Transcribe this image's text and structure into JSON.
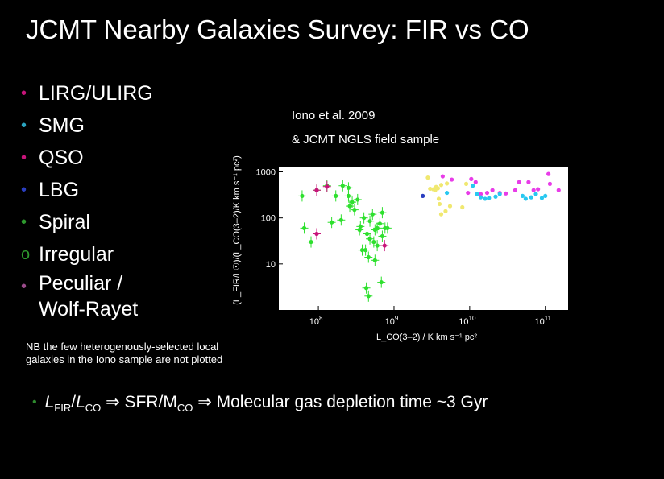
{
  "title": "JCMT Nearby Galaxies Survey: FIR vs CO",
  "legend": [
    {
      "label": "LIRG/ULIRG",
      "bullet": "•",
      "color": "#c8147a"
    },
    {
      "label": "SMG",
      "bullet": "•",
      "color": "#2aa4c0"
    },
    {
      "label": "QSO",
      "bullet": "•",
      "color": "#c8147a"
    },
    {
      "label": "LBG",
      "bullet": "•",
      "color": "#2a3ec0"
    },
    {
      "label": "Spiral",
      "bullet": "•",
      "color": "#2e9a2e"
    },
    {
      "label": "Irregular",
      "bullet": "o",
      "color": "#2e9a2e"
    },
    {
      "label": "Peculiar /",
      "label2": "Wolf-Rayet",
      "bullet": "•",
      "color": "#9a4a8a"
    }
  ],
  "reference": {
    "line1": "Iono et al. 2009",
    "line2": "& JCMT NGLS field sample"
  },
  "note": "NB the few heterogenously-selected local galaxies in the Iono sample are not plotted",
  "bottom": {
    "bullet": "•",
    "l": "L",
    "fir": "FIR",
    "slash": "/",
    "l2": "L",
    "co": "CO",
    "arrow1": " ⇒ SFR/M",
    "co2": "CO",
    "arrow2": " ⇒ Molecular gas depletion time ~3 Gyr"
  },
  "chart_data": {
    "type": "scatter",
    "xlabel": "L_CO(3–2) / K km s⁻¹ pc²",
    "ylabel": "(L_FIR/L☉)/(L_CO(3–2)/K km s⁻¹ pc²)",
    "xscale": "log",
    "yscale": "log",
    "xlim": [
      30000000,
      200000000000
    ],
    "ylim": [
      1,
      1300
    ],
    "x_ticks": [
      {
        "v": 100000000,
        "base": "10",
        "exp": "8"
      },
      {
        "v": 1000000000,
        "base": "10",
        "exp": "9"
      },
      {
        "v": 10000000000,
        "base": "10",
        "exp": "10"
      },
      {
        "v": 100000000000,
        "base": "10",
        "exp": "11"
      }
    ],
    "y_ticks": [
      {
        "v": 10,
        "label": "10"
      },
      {
        "v": 100,
        "label": "100"
      },
      {
        "v": 1000,
        "label": "1000"
      }
    ],
    "series": [
      {
        "group": "nearby",
        "color": "#2ee02e",
        "points": [
          [
            61000000,
            300
          ],
          [
            65000000,
            60
          ],
          [
            80000000,
            30
          ],
          [
            95000000,
            400
          ],
          [
            130000000,
            500
          ],
          [
            170000000,
            300
          ],
          [
            210000000,
            500
          ],
          [
            250000000,
            450
          ],
          [
            260000000,
            180
          ],
          [
            300000000,
            150
          ],
          [
            330000000,
            250
          ],
          [
            360000000,
            65
          ],
          [
            400000000,
            100
          ],
          [
            420000000,
            20
          ],
          [
            440000000,
            45
          ],
          [
            480000000,
            85
          ],
          [
            520000000,
            120
          ],
          [
            560000000,
            55
          ],
          [
            600000000,
            60
          ],
          [
            650000000,
            75
          ],
          [
            700000000,
            40
          ],
          [
            760000000,
            60
          ],
          [
            820000000,
            60
          ],
          [
            600000000,
            25
          ],
          [
            540000000,
            30
          ],
          [
            480000000,
            35
          ],
          [
            430000000,
            3
          ],
          [
            460000000,
            2
          ],
          [
            560000000,
            12
          ],
          [
            460000000,
            14
          ],
          [
            380000000,
            20
          ],
          [
            700000000,
            130
          ],
          [
            250000000,
            300
          ],
          [
            280000000,
            220
          ],
          [
            680000000,
            4
          ],
          [
            150000000,
            80
          ],
          [
            200000000,
            90
          ],
          [
            350000000,
            55
          ]
        ]
      },
      {
        "group": "peculiar",
        "color": "#c8147a",
        "points": [
          [
            95000000,
            400
          ],
          [
            95000000,
            45
          ],
          [
            130000000,
            480
          ],
          [
            750000000,
            25
          ]
        ]
      },
      {
        "group": "LIRG/ULIRG",
        "color": "#e83ce8",
        "points": [
          [
            4400000000,
            800
          ],
          [
            5800000000,
            680
          ],
          [
            9500000000,
            350
          ],
          [
            10500000000,
            700
          ],
          [
            12000000000,
            600
          ],
          [
            14000000000,
            330
          ],
          [
            17000000000,
            350
          ],
          [
            20000000000,
            400
          ],
          [
            25000000000,
            350
          ],
          [
            30000000000,
            340
          ],
          [
            40000000000,
            400
          ],
          [
            45000000000,
            600
          ],
          [
            60000000000,
            600
          ],
          [
            70000000000,
            400
          ],
          [
            80000000000,
            420
          ],
          [
            110000000000,
            900
          ],
          [
            115000000000,
            550
          ],
          [
            150000000000,
            400
          ]
        ]
      },
      {
        "group": "SMG",
        "color": "#28c8f0",
        "points": [
          [
            5000000000,
            350
          ],
          [
            11000000000,
            500
          ],
          [
            12500000000,
            330
          ],
          [
            14000000000,
            280
          ],
          [
            16000000000,
            260
          ],
          [
            18000000000,
            270
          ],
          [
            22000000000,
            290
          ],
          [
            25000000000,
            330
          ],
          [
            50000000000,
            300
          ],
          [
            55000000000,
            260
          ],
          [
            65000000000,
            280
          ],
          [
            75000000000,
            330
          ],
          [
            90000000000,
            270
          ],
          [
            100000000000,
            300
          ]
        ]
      },
      {
        "group": "QSO",
        "color": "#f0e870",
        "points": [
          [
            2800000000,
            750
          ],
          [
            3000000000,
            430
          ],
          [
            3300000000,
            420
          ],
          [
            3600000000,
            470
          ],
          [
            3800000000,
            440
          ],
          [
            4200000000,
            520
          ],
          [
            3500000000,
            400
          ],
          [
            3900000000,
            260
          ],
          [
            4000000000,
            200
          ],
          [
            5000000000,
            560
          ],
          [
            4200000000,
            120
          ],
          [
            4800000000,
            140
          ],
          [
            5500000000,
            180
          ],
          [
            8000000000,
            170
          ],
          [
            9000000000,
            550
          ]
        ]
      },
      {
        "group": "LBG",
        "color": "#2a3ec0",
        "points": [
          [
            2400000000,
            300
          ]
        ]
      }
    ]
  }
}
